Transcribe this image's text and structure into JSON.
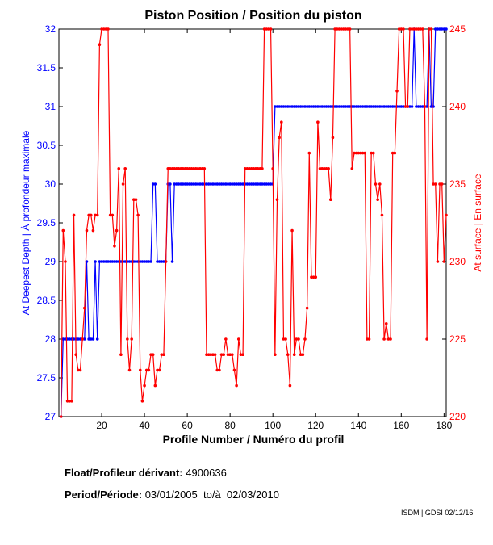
{
  "chart_data": {
    "type": "line",
    "title": "Piston Position / Position du piston",
    "xlabel": "Profile Number / Numéro du profil",
    "ylabel_left": "At Deepest Depth | À profondeur maximale",
    "ylabel_right": "At surface | En surface",
    "xlim": [
      0,
      181
    ],
    "ylim_left": [
      27,
      32
    ],
    "ylim_right": [
      220,
      245
    ],
    "x_ticks": [
      20,
      40,
      60,
      80,
      100,
      120,
      140,
      160,
      180
    ],
    "y_ticks_left": [
      27,
      27.5,
      28,
      28.5,
      29,
      29.5,
      30,
      30.5,
      31,
      31.5,
      32
    ],
    "y_ticks_right": [
      220,
      225,
      230,
      235,
      240,
      245
    ],
    "colors": {
      "left": "#0000ff",
      "right": "#ff0000"
    },
    "series": [
      {
        "name": "At Deepest Depth",
        "axis": "left",
        "color": "#0000ff",
        "values": [
          27,
          28,
          28,
          28,
          28,
          28,
          28,
          28,
          28,
          28,
          28,
          28,
          29,
          28,
          28,
          28,
          29,
          28,
          29,
          29,
          29,
          29,
          29,
          29,
          29,
          29,
          29,
          29,
          29,
          29,
          29,
          29,
          29,
          29,
          29,
          29,
          29,
          29,
          29,
          29,
          29,
          29,
          29,
          30,
          30,
          29,
          29,
          29,
          29,
          29,
          30,
          30,
          29,
          30,
          30,
          30,
          30,
          30,
          30,
          30,
          30,
          30,
          30,
          30,
          30,
          30,
          30,
          30,
          30,
          30,
          30,
          30,
          30,
          30,
          30,
          30,
          30,
          30,
          30,
          30,
          30,
          30,
          30,
          30,
          30,
          30,
          30,
          30,
          30,
          30,
          30,
          30,
          30,
          30,
          30,
          30,
          30,
          30,
          30,
          30,
          31,
          31,
          31,
          31,
          31,
          31,
          31,
          31,
          31,
          31,
          31,
          31,
          31,
          31,
          31,
          31,
          31,
          31,
          31,
          31,
          31,
          31,
          31,
          31,
          31,
          31,
          31,
          31,
          31,
          31,
          31,
          31,
          31,
          31,
          31,
          31,
          31,
          31,
          31,
          31,
          31,
          31,
          31,
          31,
          31,
          31,
          31,
          31,
          31,
          31,
          31,
          31,
          31,
          31,
          31,
          31,
          31,
          31,
          31,
          31,
          31,
          31,
          31,
          31,
          31,
          32,
          31,
          31,
          31,
          31,
          31,
          31,
          32,
          31,
          31,
          32,
          32,
          32,
          32,
          32,
          32
        ]
      },
      {
        "name": "At surface",
        "axis": "right",
        "color": "#ff0000",
        "values": [
          220,
          232,
          230,
          221,
          221,
          221,
          233,
          224,
          223,
          223,
          225,
          227,
          232,
          233,
          233,
          232,
          233,
          233,
          244,
          245,
          245,
          245,
          245,
          233,
          233,
          231,
          232,
          236,
          224,
          235,
          236,
          225,
          223,
          225,
          234,
          234,
          233,
          223,
          221,
          222,
          223,
          223,
          224,
          224,
          222,
          223,
          223,
          224,
          224,
          230,
          236,
          236,
          236,
          236,
          236,
          236,
          236,
          236,
          236,
          236,
          236,
          236,
          236,
          236,
          236,
          236,
          236,
          236,
          224,
          224,
          224,
          224,
          224,
          223,
          223,
          224,
          224,
          225,
          224,
          224,
          224,
          223,
          222,
          225,
          224,
          224,
          236,
          236,
          236,
          236,
          236,
          236,
          236,
          236,
          236,
          245,
          245,
          245,
          245,
          236,
          224,
          234,
          238,
          239,
          225,
          225,
          224,
          222,
          232,
          224,
          225,
          225,
          224,
          224,
          225,
          227,
          237,
          229,
          229,
          229,
          239,
          236,
          236,
          236,
          236,
          236,
          234,
          238,
          245,
          245,
          245,
          245,
          245,
          245,
          245,
          245,
          236,
          237,
          237,
          237,
          237,
          237,
          237,
          225,
          225,
          237,
          237,
          235,
          234,
          235,
          233,
          225,
          226,
          225,
          225,
          237,
          237,
          241,
          245,
          245,
          245,
          240,
          240,
          245,
          245,
          245,
          245,
          245,
          245,
          245,
          240,
          225,
          245,
          245,
          235,
          235,
          230,
          235,
          235,
          230,
          233
        ]
      }
    ]
  },
  "info": {
    "float_label": "Float/Profileur dérivant:",
    "float_value": "4900636",
    "period_label": "Period/Période:",
    "period_value": "03/01/2005  to/à  02/03/2010",
    "credit": "ISDM | GDSI 02/12/16"
  }
}
